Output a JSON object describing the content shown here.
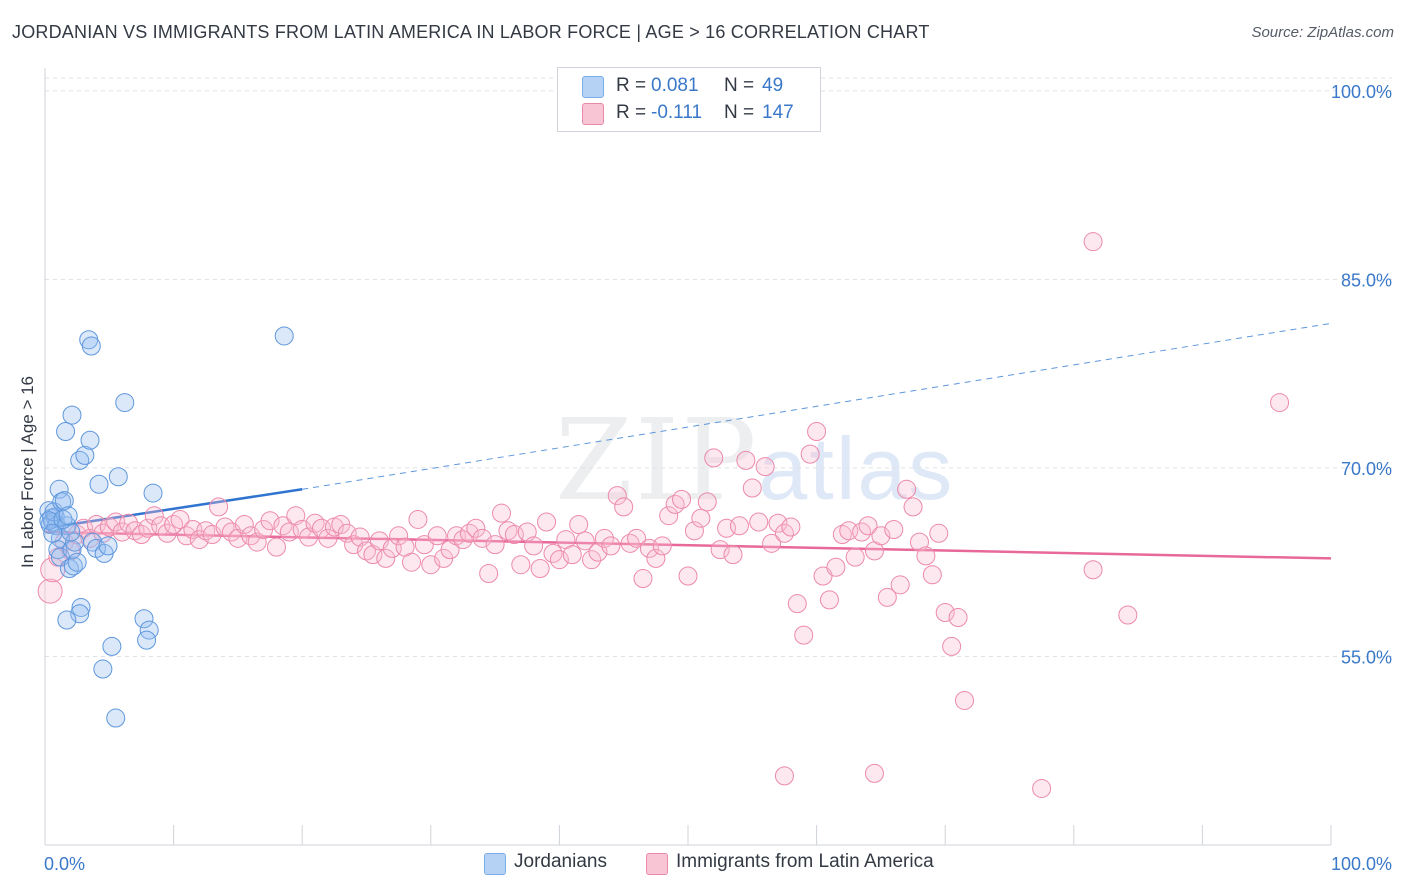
{
  "title": "JORDANIAN VS IMMIGRANTS FROM LATIN AMERICA IN LABOR FORCE | AGE > 16 CORRELATION CHART",
  "source": "Source: ZipAtlas.com",
  "watermark": {
    "main": "ZIP",
    "sub": "atlas"
  },
  "legend": {
    "r_label": "R =",
    "n_label": "N =",
    "series": [
      {
        "name": "Jordanians",
        "r": "0.081",
        "n": "49",
        "color": "#7aaee8",
        "fill": "#b5d2f5"
      },
      {
        "name": "Immigrants from Latin America",
        "r": "-0.111",
        "n": "147",
        "color": "#ec89a8",
        "fill": "#f8c5d5"
      }
    ]
  },
  "chart_data": {
    "type": "scatter",
    "title": "JORDANIAN VS IMMIGRANTS FROM LATIN AMERICA IN LABOR FORCE | AGE > 16 CORRELATION CHART",
    "xlabel": "",
    "ylabel": "In Labor Force | Age > 16",
    "xlim": [
      0,
      100
    ],
    "ylim": [
      40,
      101.5
    ],
    "x_tick_labels": [
      "0.0%",
      "100.0%"
    ],
    "y_ticks": [
      55,
      70,
      85,
      100
    ],
    "y_tick_labels": [
      "55.0%",
      "70.0%",
      "85.0%",
      "100.0%"
    ],
    "grid": "horizontal dashed",
    "series": [
      {
        "name": "Jordanians",
        "color": "#6aa3e6",
        "trend": {
          "x": [
            0,
            20
          ],
          "y": [
            65.2,
            68.3
          ],
          "extended_to": [
            100,
            81.5
          ]
        },
        "points": [
          [
            0.3,
            66.6
          ],
          [
            0.5,
            66.0
          ],
          [
            0.4,
            65.5
          ],
          [
            0.8,
            66.1
          ],
          [
            0.6,
            65.7
          ],
          [
            0.9,
            65.4
          ],
          [
            0.7,
            66.5
          ],
          [
            0.3,
            65.8
          ],
          [
            1.1,
            68.3
          ],
          [
            1.3,
            67.3
          ],
          [
            1.5,
            67.4
          ],
          [
            1.7,
            65.4
          ],
          [
            1.2,
            64.4
          ],
          [
            1.0,
            63.5
          ],
          [
            1.2,
            62.9
          ],
          [
            1.9,
            62.0
          ],
          [
            2.2,
            62.2
          ],
          [
            1.6,
            72.9
          ],
          [
            2.1,
            74.2
          ],
          [
            2.7,
            70.6
          ],
          [
            3.1,
            71.0
          ],
          [
            3.5,
            72.2
          ],
          [
            4.2,
            68.7
          ],
          [
            3.4,
            80.2
          ],
          [
            3.6,
            79.7
          ],
          [
            6.2,
            75.2
          ],
          [
            5.7,
            69.3
          ],
          [
            8.4,
            68.0
          ],
          [
            18.6,
            80.5
          ],
          [
            2.1,
            63.5
          ],
          [
            2.5,
            62.5
          ],
          [
            2.8,
            58.9
          ],
          [
            2.7,
            58.4
          ],
          [
            1.7,
            57.9
          ],
          [
            3.7,
            64.1
          ],
          [
            4.0,
            63.6
          ],
          [
            4.6,
            63.2
          ],
          [
            4.9,
            63.8
          ],
          [
            5.2,
            55.8
          ],
          [
            4.5,
            54.0
          ],
          [
            7.7,
            58.0
          ],
          [
            8.1,
            57.1
          ],
          [
            7.9,
            56.3
          ],
          [
            5.5,
            50.1
          ],
          [
            2.3,
            64.1
          ],
          [
            2.0,
            64.9
          ],
          [
            1.4,
            65.9
          ],
          [
            0.6,
            64.8
          ],
          [
            1.8,
            66.2
          ]
        ]
      },
      {
        "name": "Immigrants from Latin America",
        "color": "#ec6f98",
        "trend": {
          "x": [
            0,
            100
          ],
          "y": [
            64.9,
            62.8
          ]
        },
        "points": [
          [
            0.4,
            60.2
          ],
          [
            0.6,
            61.9
          ],
          [
            1.0,
            62.9
          ],
          [
            1.5,
            64.1
          ],
          [
            2.0,
            63.4
          ],
          [
            2.5,
            64.7
          ],
          [
            3.0,
            65.2
          ],
          [
            3.5,
            64.4
          ],
          [
            4.0,
            65.5
          ],
          [
            4.5,
            64.8
          ],
          [
            5.0,
            65.3
          ],
          [
            5.5,
            65.7
          ],
          [
            6.0,
            64.9
          ],
          [
            6.5,
            65.6
          ],
          [
            7.0,
            65.0
          ],
          [
            7.5,
            64.7
          ],
          [
            8.0,
            65.2
          ],
          [
            8.5,
            66.2
          ],
          [
            9.0,
            65.4
          ],
          [
            9.5,
            64.8
          ],
          [
            10.0,
            65.5
          ],
          [
            10.5,
            65.9
          ],
          [
            11.0,
            64.6
          ],
          [
            11.5,
            65.1
          ],
          [
            12.0,
            64.3
          ],
          [
            12.5,
            65.0
          ],
          [
            13.0,
            64.7
          ],
          [
            13.5,
            66.9
          ],
          [
            14.0,
            65.3
          ],
          [
            14.5,
            64.9
          ],
          [
            15.0,
            64.4
          ],
          [
            15.5,
            65.5
          ],
          [
            16.0,
            64.6
          ],
          [
            16.5,
            64.1
          ],
          [
            17.0,
            65.1
          ],
          [
            17.5,
            65.8
          ],
          [
            18.0,
            63.7
          ],
          [
            18.5,
            65.4
          ],
          [
            19.0,
            64.9
          ],
          [
            19.5,
            66.2
          ],
          [
            20.0,
            65.1
          ],
          [
            20.5,
            64.5
          ],
          [
            21.0,
            65.6
          ],
          [
            21.5,
            65.2
          ],
          [
            22.0,
            64.4
          ],
          [
            22.5,
            65.3
          ],
          [
            23.0,
            65.5
          ],
          [
            23.5,
            64.8
          ],
          [
            24.0,
            63.9
          ],
          [
            24.5,
            64.5
          ],
          [
            25.0,
            63.4
          ],
          [
            25.5,
            63.1
          ],
          [
            26.0,
            64.2
          ],
          [
            26.5,
            62.8
          ],
          [
            27.0,
            63.6
          ],
          [
            27.5,
            64.6
          ],
          [
            28.0,
            63.7
          ],
          [
            28.5,
            62.5
          ],
          [
            29.0,
            65.9
          ],
          [
            29.5,
            63.9
          ],
          [
            30.0,
            62.3
          ],
          [
            30.5,
            64.6
          ],
          [
            31.0,
            62.8
          ],
          [
            31.5,
            63.5
          ],
          [
            32.0,
            64.6
          ],
          [
            32.5,
            64.3
          ],
          [
            33.0,
            64.8
          ],
          [
            33.5,
            65.2
          ],
          [
            34.0,
            64.4
          ],
          [
            34.5,
            61.6
          ],
          [
            35.0,
            63.9
          ],
          [
            35.5,
            66.4
          ],
          [
            36.0,
            65.0
          ],
          [
            36.5,
            64.7
          ],
          [
            37.0,
            62.3
          ],
          [
            37.5,
            64.9
          ],
          [
            38.0,
            63.8
          ],
          [
            38.5,
            62.0
          ],
          [
            39.0,
            65.7
          ],
          [
            39.5,
            63.2
          ],
          [
            40.0,
            62.7
          ],
          [
            40.5,
            64.3
          ],
          [
            41.0,
            63.1
          ],
          [
            41.5,
            65.5
          ],
          [
            42.0,
            64.2
          ],
          [
            42.5,
            62.7
          ],
          [
            43.0,
            63.3
          ],
          [
            43.5,
            64.4
          ],
          [
            44.0,
            63.8
          ],
          [
            44.5,
            67.8
          ],
          [
            45.0,
            66.9
          ],
          [
            45.5,
            64.0
          ],
          [
            46.0,
            64.4
          ],
          [
            46.5,
            61.2
          ],
          [
            47.0,
            63.6
          ],
          [
            47.5,
            62.8
          ],
          [
            48.0,
            63.8
          ],
          [
            48.5,
            66.2
          ],
          [
            49.0,
            67.1
          ],
          [
            49.5,
            67.5
          ],
          [
            50.0,
            61.4
          ],
          [
            50.5,
            65.0
          ],
          [
            51.0,
            66.0
          ],
          [
            51.5,
            67.3
          ],
          [
            52.0,
            70.8
          ],
          [
            52.5,
            63.5
          ],
          [
            53.0,
            65.2
          ],
          [
            53.5,
            63.1
          ],
          [
            54.0,
            65.4
          ],
          [
            54.5,
            70.6
          ],
          [
            55.0,
            68.4
          ],
          [
            55.5,
            65.7
          ],
          [
            56.0,
            70.1
          ],
          [
            56.5,
            64.0
          ],
          [
            57.0,
            65.6
          ],
          [
            57.5,
            64.8
          ],
          [
            58.0,
            65.3
          ],
          [
            58.5,
            59.2
          ],
          [
            59.0,
            56.7
          ],
          [
            59.5,
            71.1
          ],
          [
            60.0,
            72.9
          ],
          [
            60.5,
            61.4
          ],
          [
            61.0,
            59.5
          ],
          [
            61.5,
            62.1
          ],
          [
            62.0,
            64.7
          ],
          [
            62.5,
            65.0
          ],
          [
            63.0,
            62.9
          ],
          [
            63.5,
            64.9
          ],
          [
            64.0,
            65.4
          ],
          [
            64.5,
            63.4
          ],
          [
            65.0,
            64.6
          ],
          [
            65.5,
            59.7
          ],
          [
            66.0,
            65.1
          ],
          [
            66.5,
            60.7
          ],
          [
            67.0,
            68.3
          ],
          [
            67.5,
            66.9
          ],
          [
            68.0,
            64.1
          ],
          [
            68.5,
            63.0
          ],
          [
            69.0,
            61.5
          ],
          [
            69.5,
            64.8
          ],
          [
            70.0,
            58.5
          ],
          [
            70.5,
            55.8
          ],
          [
            71.0,
            58.1
          ],
          [
            71.5,
            51.5
          ],
          [
            81.5,
            88.0
          ],
          [
            96.0,
            75.2
          ],
          [
            57.5,
            45.5
          ],
          [
            64.5,
            45.7
          ],
          [
            77.5,
            44.5
          ],
          [
            81.5,
            61.9
          ],
          [
            84.2,
            58.3
          ]
        ]
      }
    ]
  }
}
